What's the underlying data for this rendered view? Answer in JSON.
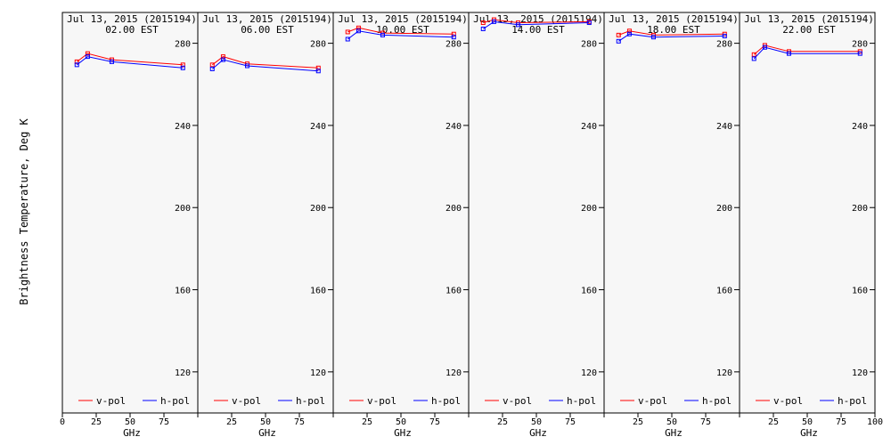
{
  "chart_data": {
    "type": "line",
    "ylabel": "Brightness Temperature, Deg K",
    "xlabel": "GHz",
    "ylim": [
      100,
      295
    ],
    "yticks": [
      120,
      160,
      200,
      240,
      280
    ],
    "xlim": [
      0,
      100
    ],
    "xticks": [
      0,
      25,
      50,
      75,
      100
    ],
    "x_tick_labels": [
      "0",
      "25",
      "50",
      "75",
      "100"
    ],
    "x": [
      10.7,
      18.7,
      36.5,
      89.0
    ],
    "legend": {
      "placement": "bottom"
    },
    "colors": {
      "v_pol": "#ff0000",
      "h_pol": "#0000ff"
    },
    "panels": [
      {
        "date": "Jul 13, 2015 (2015194)",
        "time": "02.00 EST",
        "series": [
          {
            "name": "v-pol",
            "values": [
              271.0,
              275.0,
              272.0,
              269.5
            ]
          },
          {
            "name": "h-pol",
            "values": [
              269.5,
              273.5,
              271.0,
              268.0
            ]
          }
        ]
      },
      {
        "date": "Jul 13, 2015 (2015194)",
        "time": "06.00 EST",
        "series": [
          {
            "name": "v-pol",
            "values": [
              269.5,
              273.5,
              270.0,
              268.0
            ]
          },
          {
            "name": "h-pol",
            "values": [
              267.5,
              272.0,
              269.0,
              266.5
            ]
          }
        ]
      },
      {
        "date": "Jul 13, 2015 (2015194)",
        "time": "10.00 EST",
        "series": [
          {
            "name": "v-pol",
            "values": [
              285.5,
              287.5,
              285.0,
              284.5
            ]
          },
          {
            "name": "h-pol",
            "values": [
              282.0,
              286.0,
              284.0,
              283.0
            ]
          }
        ]
      },
      {
        "date": "Jul 13, 2015 (2015194)",
        "time": "14.00 EST",
        "series": [
          {
            "name": "v-pol",
            "values": [
              290.0,
              291.5,
              290.0,
              290.5
            ]
          },
          {
            "name": "h-pol",
            "values": [
              287.0,
              290.5,
              289.0,
              290.0
            ]
          }
        ]
      },
      {
        "date": "Jul 13, 2015 (2015194)",
        "time": "18.00 EST",
        "series": [
          {
            "name": "v-pol",
            "values": [
              284.0,
              286.0,
              284.0,
              284.5
            ]
          },
          {
            "name": "h-pol",
            "values": [
              281.0,
              284.5,
              283.0,
              283.5
            ]
          }
        ]
      },
      {
        "date": "Jul 13, 2015 (2015194)",
        "time": "22.00 EST",
        "series": [
          {
            "name": "v-pol",
            "values": [
              274.5,
              279.0,
              276.0,
              276.0
            ]
          },
          {
            "name": "h-pol",
            "values": [
              272.5,
              278.0,
              275.0,
              275.0
            ]
          }
        ]
      }
    ]
  }
}
